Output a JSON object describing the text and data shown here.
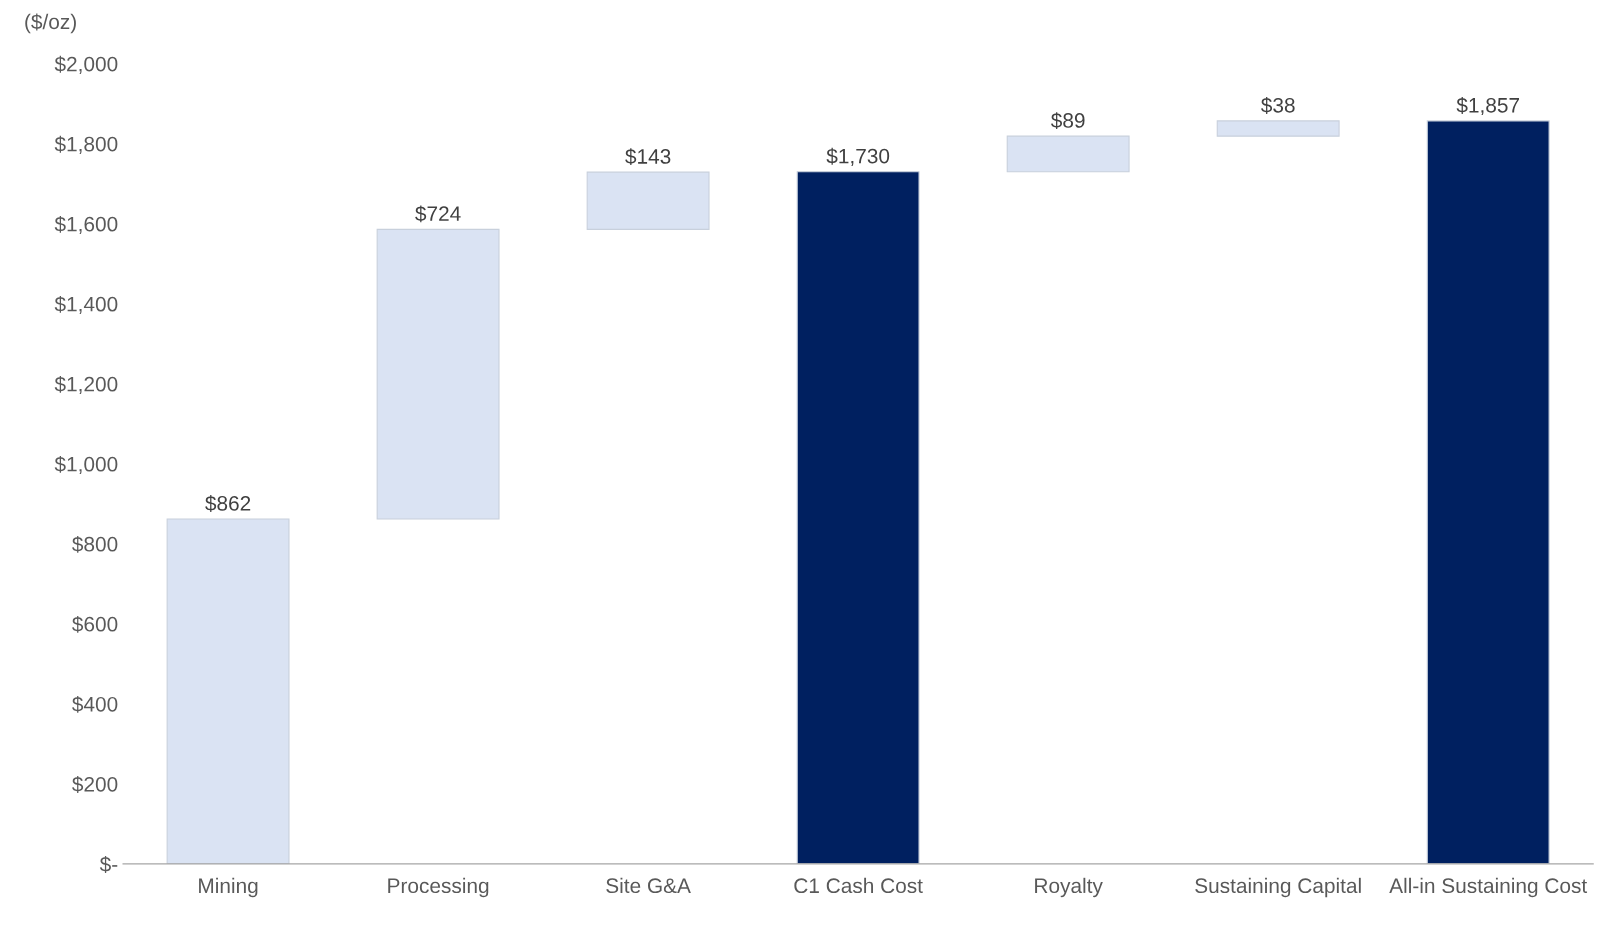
{
  "chart_data": {
    "type": "bar",
    "ylabel": "($/oz)",
    "categories": [
      "Mining",
      "Processing",
      "Site G&A",
      "C1 Cash Cost",
      "Royalty",
      "Sustaining Capital",
      "All-in Sustaining Cost"
    ],
    "values": [
      862,
      724,
      143,
      1730,
      89,
      38,
      1857
    ],
    "base": [
      0,
      862,
      1586,
      0,
      1730,
      1819,
      0
    ],
    "colors": [
      "#dae3f3",
      "#dae3f3",
      "#dae3f3",
      "#002060",
      "#dae3f3",
      "#dae3f3",
      "#002060"
    ],
    "value_labels": [
      "$862",
      "$724",
      "$143",
      "$1,730",
      "$89",
      "$38",
      "$1,857"
    ],
    "ylim": [
      0,
      2000
    ],
    "yticks": [
      {
        "value": 0,
        "label": "$-"
      },
      {
        "value": 200,
        "label": "$200"
      },
      {
        "value": 400,
        "label": "$400"
      },
      {
        "value": 600,
        "label": "$600"
      },
      {
        "value": 800,
        "label": "$800"
      },
      {
        "value": 1000,
        "label": "$1,000"
      },
      {
        "value": 1200,
        "label": "$1,200"
      },
      {
        "value": 1400,
        "label": "$1,400"
      },
      {
        "value": 1600,
        "label": "$1,600"
      },
      {
        "value": 1800,
        "label": "$1,800"
      },
      {
        "value": 2000,
        "label": "$2,000"
      }
    ],
    "grid": false,
    "legend": false
  }
}
